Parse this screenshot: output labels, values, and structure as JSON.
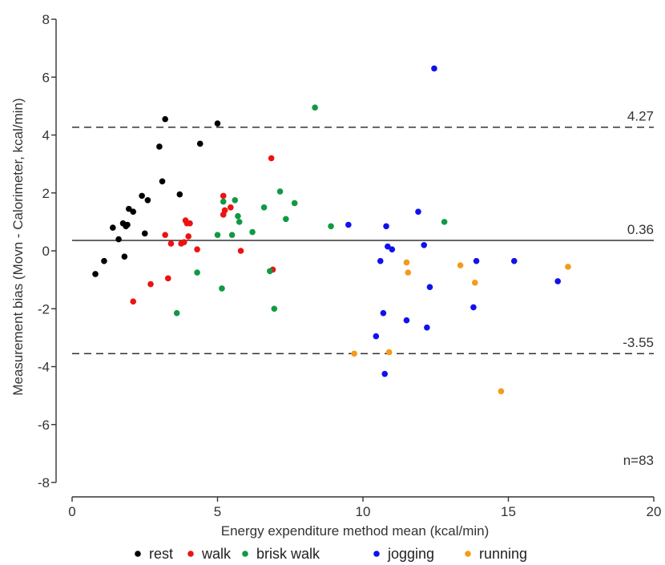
{
  "chart_data": {
    "type": "scatter",
    "xlabel": "Energy expenditure method mean (kcal/min)",
    "ylabel": "Measurement bias (Movn - Calorimeter, kcal/min)",
    "xlim": [
      0,
      20
    ],
    "ylim": [
      -8,
      8
    ],
    "xticks": [
      0,
      5,
      10,
      15,
      20
    ],
    "yticks": [
      -8,
      -6,
      -4,
      -2,
      0,
      2,
      4,
      6,
      8
    ],
    "grid": false,
    "legend_position": "bottom",
    "annotation": "n=83",
    "reference_lines": [
      {
        "y": 4.27,
        "style": "dashed",
        "label": "4.27"
      },
      {
        "y": 0.36,
        "style": "solid",
        "label": "0.36"
      },
      {
        "y": -3.55,
        "style": "dashed",
        "label": "-3.55"
      }
    ],
    "series": [
      {
        "name": "rest",
        "color": "#000000",
        "x": [
          0.8,
          1.1,
          1.4,
          1.6,
          1.75,
          1.8,
          1.85,
          1.9,
          1.95,
          2.1,
          2.4,
          2.5,
          2.6,
          3.0,
          3.1,
          3.2,
          3.7,
          4.4,
          5.0
        ],
        "y": [
          -0.8,
          -0.35,
          0.8,
          0.4,
          0.95,
          -0.2,
          0.85,
          0.9,
          1.45,
          1.35,
          1.9,
          0.6,
          1.75,
          3.6,
          2.4,
          4.55,
          1.95,
          3.7,
          4.4
        ]
      },
      {
        "name": "walk",
        "color": "#ee1111",
        "x": [
          2.1,
          2.7,
          3.2,
          3.3,
          3.4,
          3.75,
          3.85,
          3.9,
          3.95,
          4.0,
          4.05,
          4.3,
          5.2,
          5.2,
          5.25,
          5.45,
          5.8,
          6.85,
          6.9
        ],
        "y": [
          -1.75,
          -1.15,
          0.55,
          -0.95,
          0.25,
          0.25,
          0.3,
          1.05,
          0.95,
          0.5,
          0.95,
          0.05,
          1.9,
          1.25,
          1.4,
          1.5,
          0.0,
          3.2,
          -0.65
        ]
      },
      {
        "name": "brisk walk",
        "color": "#119944",
        "x": [
          3.6,
          4.3,
          5.0,
          5.15,
          5.2,
          5.5,
          5.6,
          5.7,
          5.75,
          6.2,
          6.6,
          6.8,
          6.95,
          7.15,
          7.35,
          7.65,
          8.35,
          8.9,
          12.8
        ],
        "y": [
          -2.15,
          -0.75,
          0.55,
          -1.3,
          1.7,
          0.55,
          1.75,
          1.2,
          1.0,
          0.65,
          1.5,
          -0.7,
          -2.0,
          2.05,
          1.1,
          1.65,
          4.95,
          0.85,
          1.0
        ]
      },
      {
        "name": "jogging",
        "color": "#1111ee",
        "x": [
          9.5,
          10.45,
          10.6,
          10.7,
          10.75,
          10.8,
          10.85,
          11.0,
          11.5,
          11.9,
          12.1,
          12.2,
          12.3,
          12.45,
          13.8,
          13.9,
          15.2,
          16.7
        ],
        "y": [
          0.9,
          -2.95,
          -0.35,
          -2.15,
          -4.25,
          0.85,
          0.15,
          0.05,
          -2.4,
          1.35,
          0.2,
          -2.65,
          -1.25,
          6.3,
          -1.95,
          -0.35,
          -0.35,
          -1.05
        ]
      },
      {
        "name": "running",
        "color": "#f59a1b",
        "x": [
          9.7,
          10.9,
          11.5,
          11.55,
          13.35,
          13.85,
          14.75,
          17.05
        ],
        "y": [
          -3.55,
          -3.5,
          -0.4,
          -0.75,
          -0.5,
          -1.1,
          -4.85,
          -0.55
        ]
      }
    ]
  }
}
